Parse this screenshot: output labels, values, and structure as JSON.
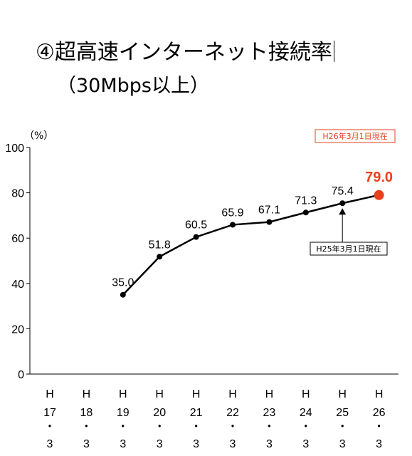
{
  "chart_data": {
    "type": "line",
    "title": "④超高速インターネット接続率",
    "subtitle": "（30Mbps以上）",
    "unit_label": "（%）",
    "date_badge": "H26年3月1日現在",
    "callout": "H25年3月1日現在",
    "categories": [
      {
        "era": "H",
        "year": "17",
        "month": "3"
      },
      {
        "era": "H",
        "year": "18",
        "month": "3"
      },
      {
        "era": "H",
        "year": "19",
        "month": "3"
      },
      {
        "era": "H",
        "year": "20",
        "month": "3"
      },
      {
        "era": "H",
        "year": "21",
        "month": "3"
      },
      {
        "era": "H",
        "year": "22",
        "month": "3"
      },
      {
        "era": "H",
        "year": "23",
        "month": "3"
      },
      {
        "era": "H",
        "year": "24",
        "month": "3"
      },
      {
        "era": "H",
        "year": "25",
        "month": "3"
      },
      {
        "era": "H",
        "year": "26",
        "month": "3"
      }
    ],
    "separator": "・",
    "values": [
      null,
      null,
      35.0,
      51.8,
      60.5,
      65.9,
      67.1,
      71.3,
      75.4,
      79.0
    ],
    "value_labels": [
      "",
      "",
      "35.0",
      "51.8",
      "60.5",
      "65.9",
      "67.1",
      "71.3",
      "75.4",
      "79.0"
    ],
    "y_ticks": [
      "0",
      "20",
      "40",
      "60",
      "80",
      "100"
    ],
    "ylim": [
      0,
      100
    ],
    "grid": false,
    "colors": {
      "line": "#000000",
      "highlight": "#e8401c",
      "badge_border": "#e8401c",
      "axis": "#000000"
    }
  }
}
